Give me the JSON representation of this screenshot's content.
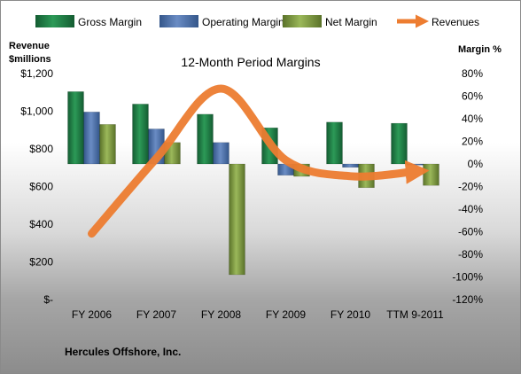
{
  "chart_data": {
    "type": "bar",
    "title": "12-Month Period Margins",
    "company": "Hercules Offshore, Inc.",
    "y_left_label_lines": [
      "Revenue",
      "$millions"
    ],
    "y_right_label": "Margin %",
    "categories": [
      "FY 2006",
      "FY 2007",
      "FY 2008",
      "FY 2009",
      "FY 2010",
      "TTM 9-2011"
    ],
    "y_left_ticks": [
      "$-",
      "$200",
      "$400",
      "$600",
      "$800",
      "$1,000",
      "$1,200"
    ],
    "y_left_range": [
      0,
      1200
    ],
    "y_right_ticks": [
      "-120%",
      "-100%",
      "-80%",
      "-60%",
      "-40%",
      "-20%",
      "0%",
      "20%",
      "40%",
      "60%",
      "80%"
    ],
    "y_right_range": [
      -120,
      80
    ],
    "series": [
      {
        "name": "Gross Margin",
        "axis": "right",
        "kind": "bar",
        "color": "#1e7b45",
        "values": [
          64,
          53,
          44,
          32,
          37,
          36
        ]
      },
      {
        "name": "Operating Margin",
        "axis": "right",
        "kind": "bar",
        "color": "#4a6fa8",
        "values": [
          46,
          31,
          19,
          -10,
          -3,
          -1
        ]
      },
      {
        "name": "Net Margin",
        "axis": "right",
        "kind": "bar",
        "color": "#77933c",
        "values": [
          35,
          19,
          -98,
          -11,
          -21,
          -19
        ]
      },
      {
        "name": "Revenues",
        "axis": "left",
        "kind": "line",
        "color": "#ed7d31",
        "values": [
          350,
          750,
          1120,
          740,
          655,
          680
        ]
      }
    ]
  }
}
